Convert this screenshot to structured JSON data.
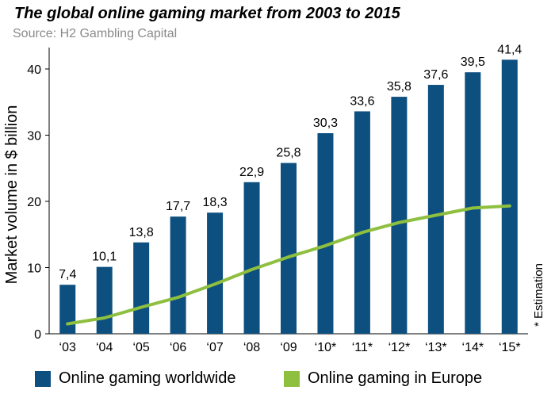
{
  "chart_data": {
    "type": "bar",
    "title": "The global online gaming market from 2003 to 2015",
    "subtitle": "Source: H2 Gambling Capital",
    "ylabel": "Market volume in $ billion",
    "xlabel": "",
    "note": "* Estimation",
    "ylim": [
      0,
      43
    ],
    "yticks": [
      0,
      10,
      20,
      30,
      40
    ],
    "grid": false,
    "legend_position": "bottom",
    "categories": [
      "‘03",
      "‘04",
      "‘05",
      "‘06",
      "‘07",
      "‘08",
      "‘09",
      "‘10*",
      "‘11*",
      "‘12*",
      "‘13*",
      "‘14*",
      "‘15*"
    ],
    "series": [
      {
        "name": "Online gaming worldwide",
        "type": "bar",
        "color": "#0d5080",
        "values": [
          7.4,
          10.1,
          13.8,
          17.7,
          18.3,
          22.9,
          25.8,
          30.3,
          33.6,
          35.8,
          37.6,
          39.5,
          41.4
        ],
        "labels": [
          "7,4",
          "10,1",
          "13,8",
          "17,7",
          "18,3",
          "22,9",
          "25,8",
          "30,3",
          "33,6",
          "35,8",
          "37,6",
          "39,5",
          "41,4"
        ]
      },
      {
        "name": "Online gaming in Europe",
        "type": "line",
        "color": "#8ebf3f",
        "values": [
          1.5,
          2.4,
          4.0,
          5.5,
          7.5,
          9.7,
          11.6,
          13.3,
          15.3,
          16.8,
          17.9,
          19.0,
          19.3
        ]
      }
    ]
  }
}
